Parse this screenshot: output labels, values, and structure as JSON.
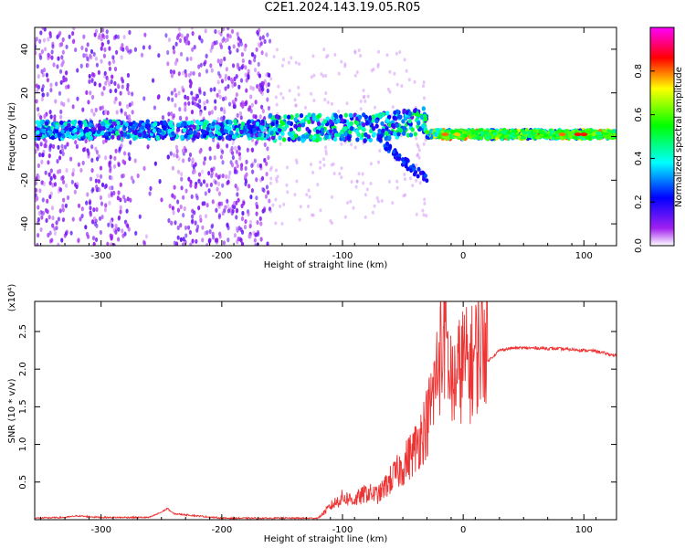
{
  "title": "C2E1.2024.143.19.05.R05",
  "chart_data": [
    {
      "type": "heatmap",
      "title": "C2E1.2024.143.19.05.R05",
      "xlabel": "Height of straight line (km)",
      "ylabel": "Frequency (Hz)",
      "xlim": [
        -355,
        127
      ],
      "ylim": [
        -50,
        50
      ],
      "x_ticks": [
        -300,
        -200,
        -100,
        0,
        100
      ],
      "y_ticks": [
        -40,
        -20,
        0,
        20,
        40
      ],
      "colorbar": {
        "label": "Normalized spectral amplitude",
        "range": [
          0.0,
          1.0
        ],
        "ticks": [
          0.0,
          0.2,
          0.4,
          0.6,
          0.8
        ],
        "colormap": [
          "#ffffff",
          "#a020f0",
          "#0000ff",
          "#00ffff",
          "#00ff00",
          "#ffff00",
          "#ff0000",
          "#ff00ff"
        ]
      },
      "features": [
        {
          "x_range": [
            -355,
            -160
          ],
          "freq_center": 3,
          "freq_width": 8,
          "amplitude": 0.4
        },
        {
          "x_range": [
            -160,
            -30
          ],
          "freq_center": 4,
          "freq_width": 12,
          "amplitude": 0.45
        },
        {
          "x_range": [
            -30,
            127
          ],
          "freq_center": 1,
          "freq_width": 4,
          "amplitude": 0.7
        },
        {
          "x_range": [
            -355,
            -160
          ],
          "freq_center": 0,
          "freq_width": 100,
          "amplitude": 0.05
        }
      ]
    },
    {
      "type": "line",
      "xlabel": "Height of straight line (km)",
      "ylabel": "SNR (10 * v/v)",
      "y_multiplier": "(x10⁴)",
      "xlim": [
        -355,
        127
      ],
      "ylim": [
        0,
        2.9
      ],
      "x_ticks": [
        -300,
        -200,
        -100,
        0,
        100
      ],
      "y_ticks": [
        0.5,
        1.0,
        1.5,
        2.0,
        2.5
      ],
      "series": [
        {
          "color": "#ee3333",
          "x": [
            -355,
            -330,
            -320,
            -300,
            -260,
            -250,
            -245,
            -240,
            -200,
            -160,
            -120,
            -110,
            -100,
            -90,
            -80,
            -70,
            -60,
            -50,
            -40,
            -30,
            -25,
            -20,
            -15,
            -10,
            -5,
            0,
            5,
            10,
            15,
            20,
            30,
            40,
            60,
            80,
            100,
            110,
            120,
            127
          ],
          "y": [
            0.02,
            0.03,
            0.05,
            0.03,
            0.03,
            0.1,
            0.15,
            0.08,
            0.02,
            0.02,
            0.02,
            0.15,
            0.25,
            0.22,
            0.3,
            0.28,
            0.45,
            0.6,
            0.8,
            1.1,
            1.4,
            1.8,
            2.1,
            1.5,
            1.6,
            1.8,
            1.7,
            1.85,
            2.0,
            2.1,
            2.25,
            2.28,
            2.28,
            2.27,
            2.25,
            2.24,
            2.2,
            2.18
          ]
        }
      ]
    }
  ]
}
